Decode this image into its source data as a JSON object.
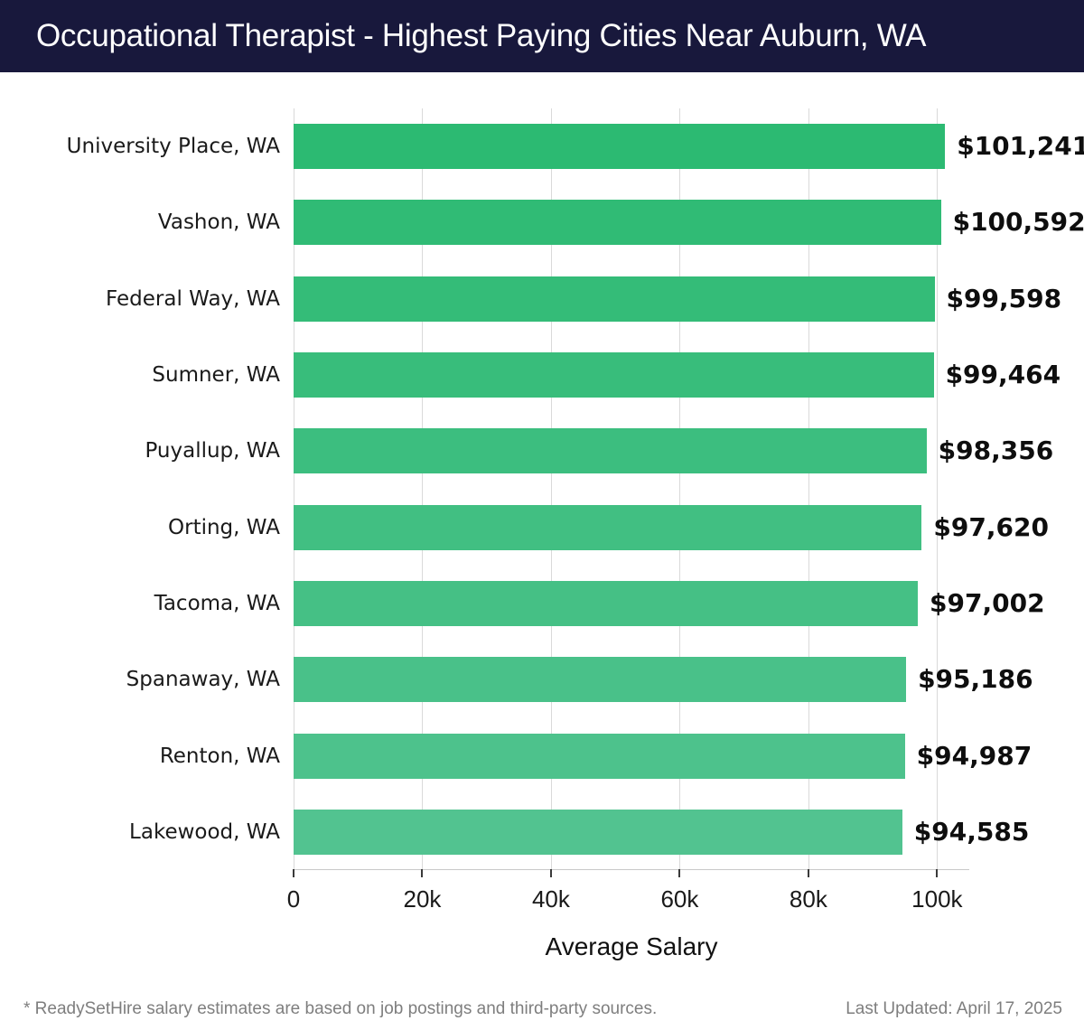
{
  "header": {
    "title": "Occupational Therapist - Highest Paying Cities Near Auburn, WA",
    "bg_color": "#18183c",
    "text_color": "#ffffff"
  },
  "chart_data": {
    "type": "bar",
    "orientation": "horizontal",
    "title": "Occupational Therapist - Highest Paying Cities Near Auburn, WA",
    "categories": [
      "University Place, WA",
      "Vashon, WA",
      "Federal Way, WA",
      "Sumner, WA",
      "Puyallup, WA",
      "Orting, WA",
      "Tacoma, WA",
      "Spanaway, WA",
      "Renton, WA",
      "Lakewood, WA"
    ],
    "values": [
      101241,
      100592,
      99598,
      99464,
      98356,
      97620,
      97002,
      95186,
      94987,
      94585
    ],
    "value_labels": [
      "$101,241",
      "$100,592",
      "$99,598",
      "$99,464",
      "$98,356",
      "$97,620",
      "$97,002",
      "$95,186",
      "$94,987",
      "$94,585"
    ],
    "bar_colors": [
      "#2cba72",
      "#30bb75",
      "#34bc78",
      "#38bd7b",
      "#3cbe7f",
      "#41bf82",
      "#45c085",
      "#49c189",
      "#4dc28c",
      "#52c390"
    ],
    "xlabel": "Average Salary",
    "ylabel": "",
    "x_ticks": [
      "0",
      "20k",
      "40k",
      "60k",
      "80k",
      "100k"
    ],
    "x_tick_values": [
      0,
      20000,
      40000,
      60000,
      80000,
      100000
    ],
    "xlim": [
      0,
      105000
    ],
    "grid": "vertical",
    "legend": "none",
    "gridline_color": "#d9d9d9"
  },
  "footer": {
    "note": "* ReadySetHire salary estimates are based on job postings and third-party sources.",
    "updated": "Last Updated: April 17, 2025"
  }
}
